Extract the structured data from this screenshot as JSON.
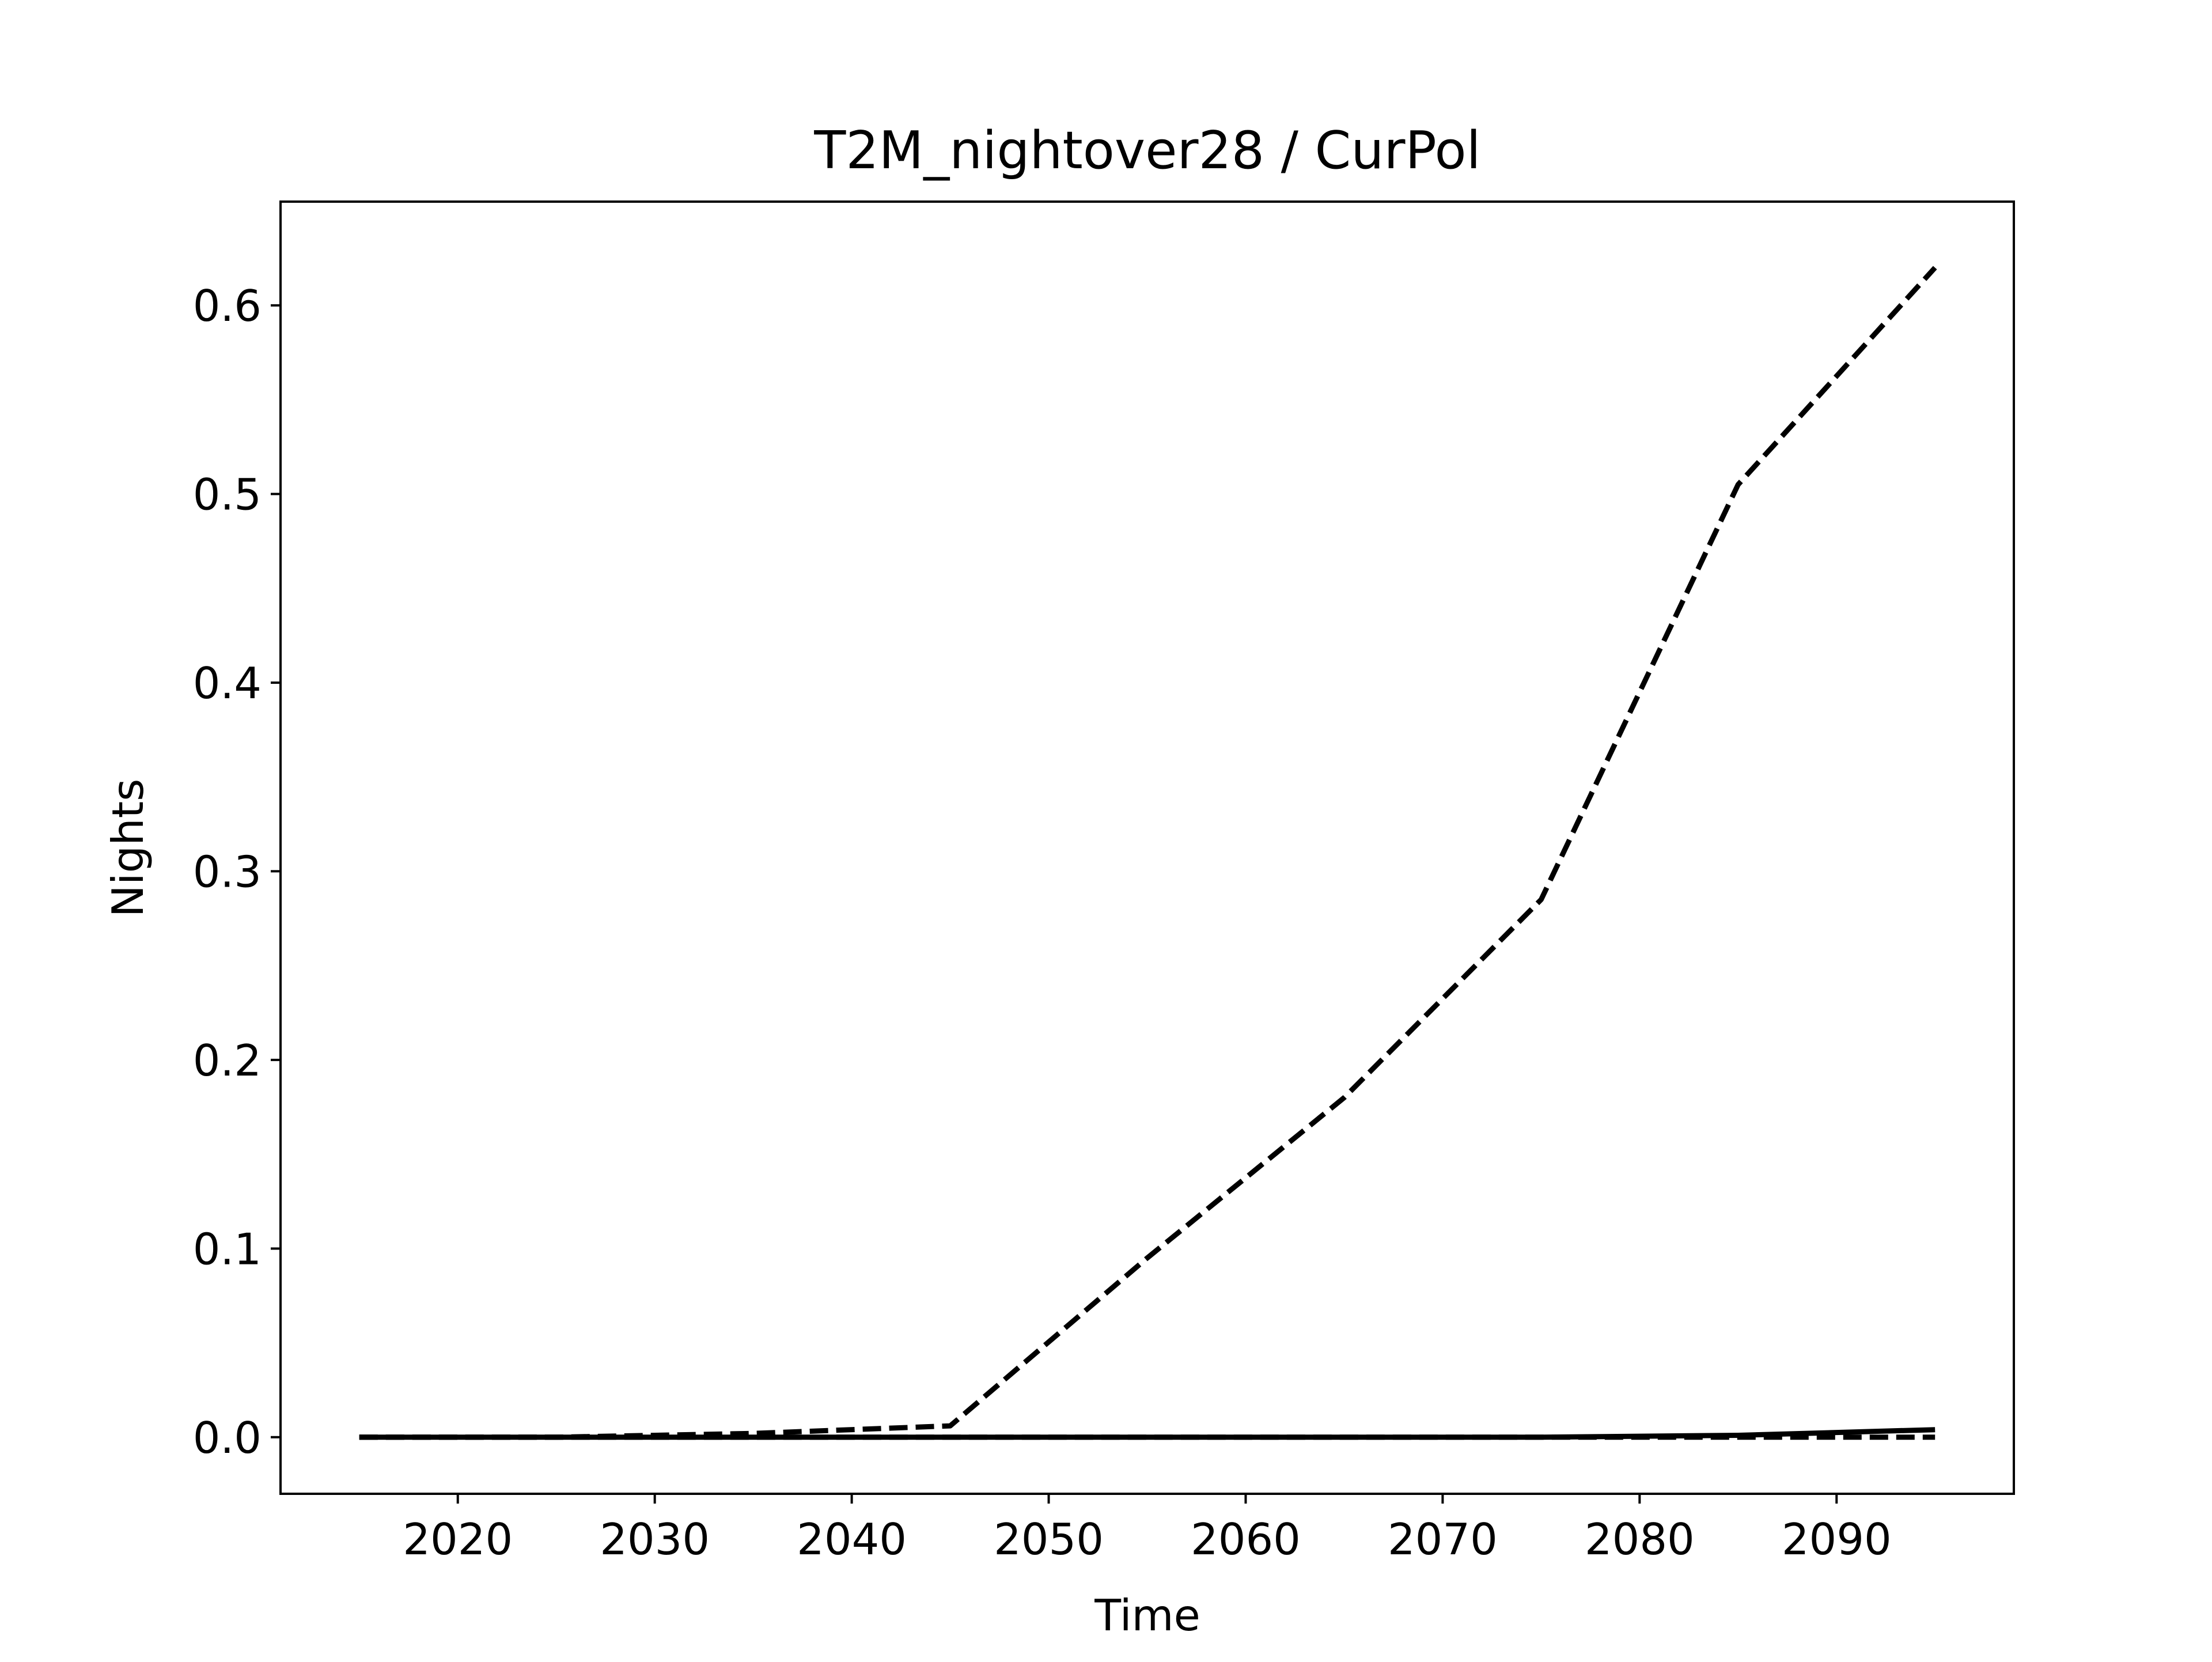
{
  "chart_data": {
    "type": "line",
    "title": "T2M_nightover28 / CurPol",
    "xlabel": "Time",
    "ylabel": "Nights",
    "xlim": [
      2011,
      2099
    ],
    "ylim": [
      -0.03,
      0.655
    ],
    "xticks": [
      2020,
      2030,
      2040,
      2050,
      2060,
      2070,
      2080,
      2090
    ],
    "yticks": [
      0.0,
      0.1,
      0.2,
      0.3,
      0.4,
      0.5,
      0.6
    ],
    "ytick_labels": [
      "0.0",
      "0.1",
      "0.2",
      "0.3",
      "0.4",
      "0.5",
      "0.6"
    ],
    "grid": false,
    "legend": "none",
    "series": [
      {
        "style": "dashed",
        "color": "#000000",
        "x": [
          2015,
          2025,
          2035,
          2045,
          2055,
          2065,
          2075,
          2085,
          2095
        ],
        "y": [
          0.0,
          0.0,
          0.002,
          0.006,
          0.095,
          0.18,
          0.285,
          0.505,
          0.62
        ]
      },
      {
        "style": "solid",
        "color": "#000000",
        "x": [
          2015,
          2025,
          2035,
          2045,
          2055,
          2065,
          2075,
          2085,
          2095
        ],
        "y": [
          0.0,
          0.0,
          0.0,
          0.0,
          0.0,
          0.0,
          0.0,
          0.001,
          0.004
        ]
      },
      {
        "style": "dashed",
        "color": "#000000",
        "x": [
          2015,
          2025,
          2035,
          2045,
          2055,
          2065,
          2075,
          2085,
          2095
        ],
        "y": [
          0.0,
          0.0,
          0.0,
          0.0,
          0.0,
          0.0,
          0.0,
          0.0,
          0.0
        ]
      }
    ]
  }
}
